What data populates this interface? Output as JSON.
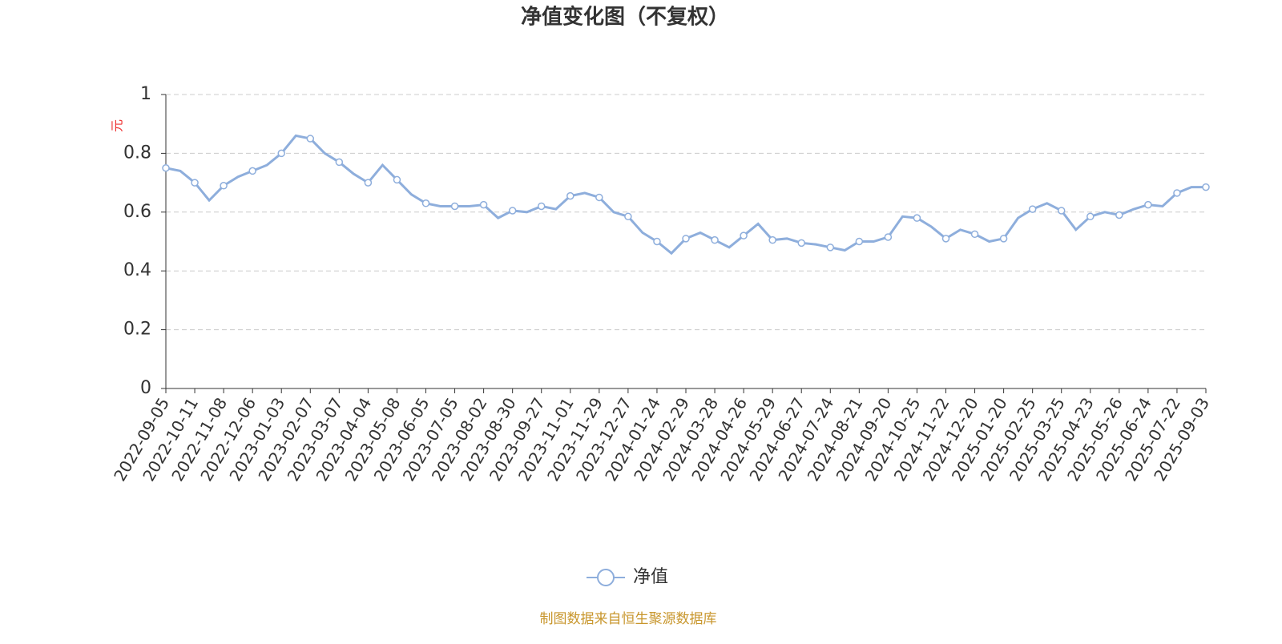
{
  "chart_data": {
    "type": "line",
    "title": "净值变化图（不复权）",
    "y_label": "元",
    "categories": [
      "2022-09-05",
      null,
      "2022-10-11",
      null,
      "2022-11-08",
      null,
      "2022-12-06",
      null,
      "2023-01-03",
      null,
      "2023-02-07",
      null,
      "2023-03-07",
      null,
      "2023-04-04",
      null,
      "2023-05-08",
      null,
      "2023-06-05",
      null,
      "2023-07-05",
      null,
      "2023-08-02",
      null,
      "2023-08-30",
      null,
      "2023-09-27",
      null,
      "2023-11-01",
      null,
      "2023-11-29",
      null,
      "2023-12-27",
      null,
      "2024-01-24",
      null,
      "2024-02-29",
      null,
      "2024-03-28",
      null,
      "2024-04-26",
      null,
      "2024-05-29",
      null,
      "2024-06-27",
      null,
      "2024-07-24",
      null,
      "2024-08-21",
      null,
      "2024-09-20",
      null,
      "2024-10-25",
      null,
      "2024-11-22",
      null,
      "2024-12-20",
      null,
      "2025-01-20",
      null,
      "2025-02-25",
      null,
      "2025-03-25",
      null,
      "2025-04-23",
      null,
      "2025-05-26",
      null,
      "2025-06-24",
      null,
      "2025-07-22",
      null,
      "2025-09-03"
    ],
    "series": [
      {
        "name": "净值",
        "color": "#8eaedc",
        "values": [
          0.75,
          0.74,
          0.7,
          0.64,
          0.69,
          0.72,
          0.74,
          0.76,
          0.8,
          0.86,
          0.85,
          0.8,
          0.77,
          0.73,
          0.7,
          0.76,
          0.71,
          0.66,
          0.63,
          0.62,
          0.62,
          0.62,
          0.625,
          0.58,
          0.605,
          0.6,
          0.62,
          0.61,
          0.655,
          0.665,
          0.65,
          0.6,
          0.585,
          0.53,
          0.5,
          0.46,
          0.51,
          0.53,
          0.505,
          0.48,
          0.52,
          0.56,
          0.505,
          0.51,
          0.495,
          0.49,
          0.48,
          0.47,
          0.5,
          0.5,
          0.515,
          0.585,
          0.58,
          0.55,
          0.51,
          0.54,
          0.525,
          0.5,
          0.51,
          0.58,
          0.61,
          0.63,
          0.605,
          0.54,
          0.585,
          0.6,
          0.59,
          0.61,
          0.625,
          0.62,
          0.665,
          0.685,
          0.685
        ]
      }
    ],
    "ylim": [
      0,
      1
    ],
    "yticks": [
      0,
      0.2,
      0.4,
      0.6,
      0.8,
      1
    ],
    "grid": true,
    "source": "制图数据来自恒生聚源数据库"
  }
}
